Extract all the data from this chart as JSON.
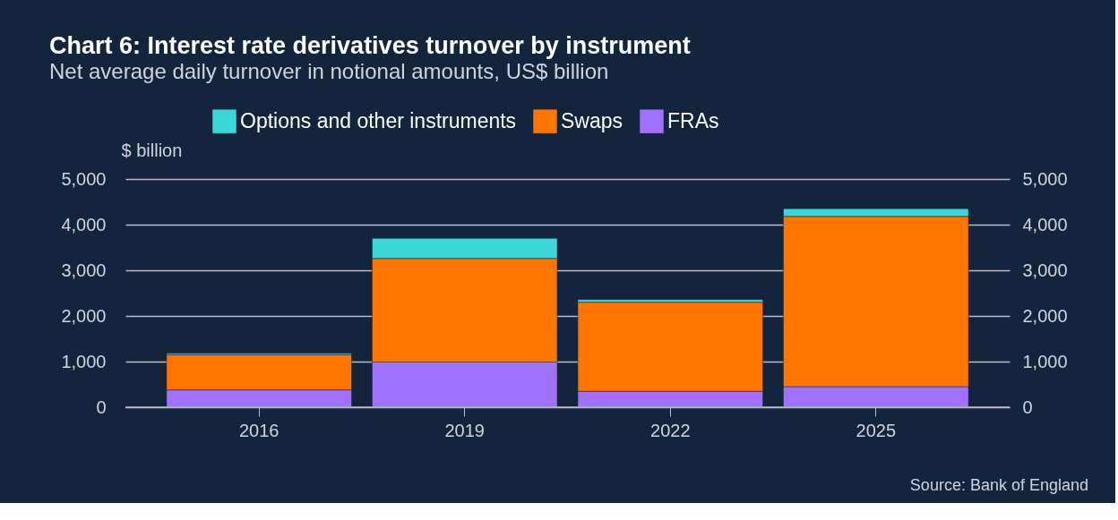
{
  "chart_data": {
    "type": "bar",
    "title": "Chart 6: Interest rate derivatives turnover by instrument",
    "subtitle": "Net average daily turnover in notional amounts, US$ billion",
    "ylabel": "$ billion",
    "categories": [
      "2016",
      "2019",
      "2022",
      "2025"
    ],
    "stacked": true,
    "series": [
      {
        "name": "FRAs",
        "color": "#a070ff",
        "values": [
          380,
          990,
          350,
          450
        ]
      },
      {
        "name": "Swaps",
        "color": "#ff7500",
        "values": [
          770,
          2270,
          1950,
          3730
        ]
      },
      {
        "name": "Options and other instruments",
        "color": "#3cd7d9",
        "values": [
          30,
          440,
          60,
          170
        ]
      }
    ],
    "ylim": [
      0,
      5000
    ],
    "yticks": [
      {
        "value": 0,
        "label": "0"
      },
      {
        "value": 1000,
        "label": "1,000"
      },
      {
        "value": 2000,
        "label": "2,000"
      },
      {
        "value": 3000,
        "label": "3,000"
      },
      {
        "value": 4000,
        "label": "4,000"
      },
      {
        "value": 5000,
        "label": "5,000"
      }
    ],
    "y2lim": [
      0,
      5000
    ],
    "y2ticks": [
      {
        "value": 0,
        "label": "0"
      },
      {
        "value": 1000,
        "label": "1,000"
      },
      {
        "value": 2000,
        "label": "2,000"
      },
      {
        "value": 3000,
        "label": "3,000"
      },
      {
        "value": 4000,
        "label": "4,000"
      },
      {
        "value": 5000,
        "label": "5,000"
      }
    ],
    "grid": "y",
    "legend": "top",
    "annotations": [
      "Source: Bank of England"
    ]
  }
}
